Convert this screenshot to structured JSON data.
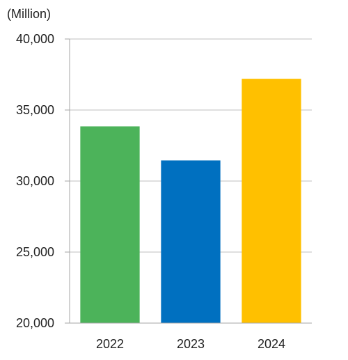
{
  "chart_data": {
    "type": "bar",
    "unit_label": "(Million)",
    "categories": [
      "2022",
      "2023",
      "2024"
    ],
    "values": [
      33850,
      31450,
      37200
    ],
    "bar_colors": [
      "#4cb35a",
      "#0070c0",
      "#ffc000"
    ],
    "ylim": [
      20000,
      40000
    ],
    "yticks": [
      20000,
      25000,
      30000,
      35000,
      40000
    ],
    "ytick_labels": [
      "20,000",
      "25,000",
      "30,000",
      "35,000",
      "40,000"
    ],
    "grid": true,
    "legend": "none"
  }
}
